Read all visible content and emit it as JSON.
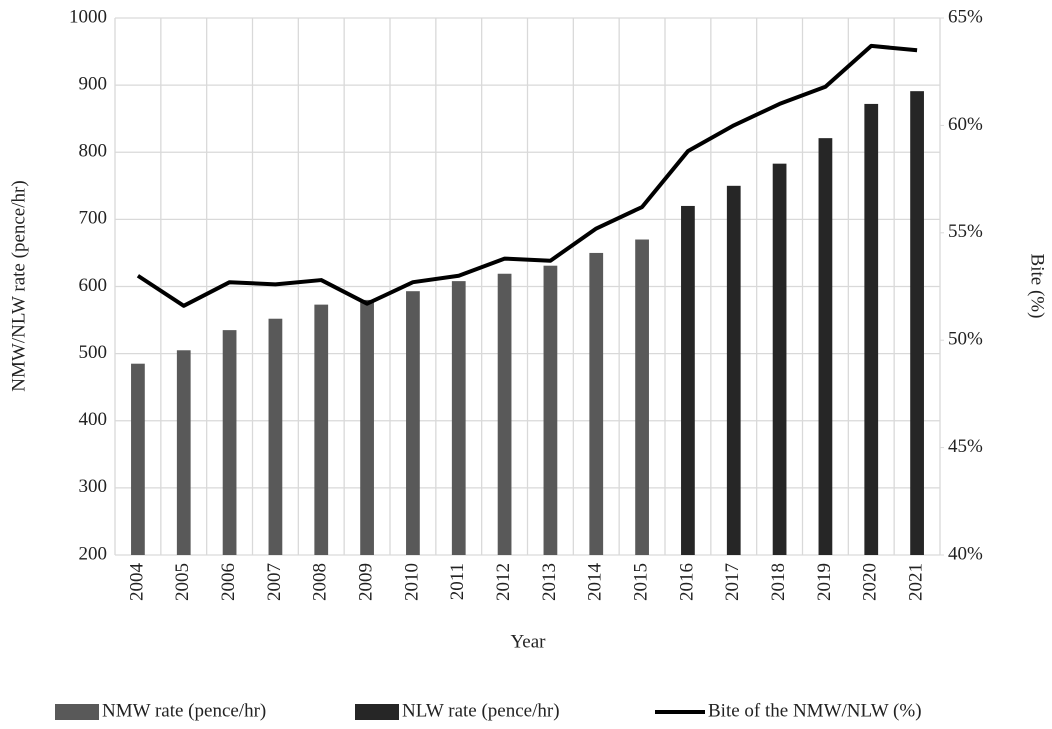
{
  "chart_data": {
    "type": "bar-line",
    "x_label": "Year",
    "y_label": "NMW/NLW rate (pence/hr)",
    "y2_label": "Bite (%)",
    "categories": [
      "2004",
      "2005",
      "2006",
      "2007",
      "2008",
      "2009",
      "2010",
      "2011",
      "2012",
      "2013",
      "2014",
      "2015",
      "2016",
      "2017",
      "2018",
      "2019",
      "2020",
      "2021"
    ],
    "series": [
      {
        "name": "NMW rate (pence/hr)",
        "color": "#595959",
        "kind": "bar",
        "values": [
          485,
          505,
          535,
          552,
          573,
          580,
          593,
          608,
          619,
          631,
          650,
          670,
          null,
          null,
          null,
          null,
          null,
          null
        ]
      },
      {
        "name": "NLW rate (pence/hr)",
        "color": "#262626",
        "kind": "bar",
        "values": [
          null,
          null,
          null,
          null,
          null,
          null,
          null,
          null,
          null,
          null,
          null,
          null,
          720,
          750,
          783,
          821,
          872,
          891
        ]
      },
      {
        "name": "Bite of the NMW/NLW (%)",
        "color": "#000000",
        "kind": "line",
        "axis": "y2",
        "values": [
          53.0,
          51.6,
          52.7,
          52.6,
          52.8,
          51.7,
          52.7,
          53.0,
          53.8,
          53.7,
          55.2,
          56.2,
          58.8,
          60.0,
          61.0,
          61.8,
          63.7,
          63.5
        ]
      }
    ],
    "ylim": [
      200,
      1000
    ],
    "yticks": [
      200,
      300,
      400,
      500,
      600,
      700,
      800,
      900,
      1000
    ],
    "y2lim": [
      40,
      65
    ],
    "y2ticks": [
      {
        "value": 40,
        "label": "40%"
      },
      {
        "value": 45,
        "label": "45%"
      },
      {
        "value": 50,
        "label": "50%"
      },
      {
        "value": 55,
        "label": "55%"
      },
      {
        "value": 60,
        "label": "60%"
      },
      {
        "value": 65,
        "label": "65%"
      }
    ],
    "grid": true,
    "legend": "bottom"
  }
}
